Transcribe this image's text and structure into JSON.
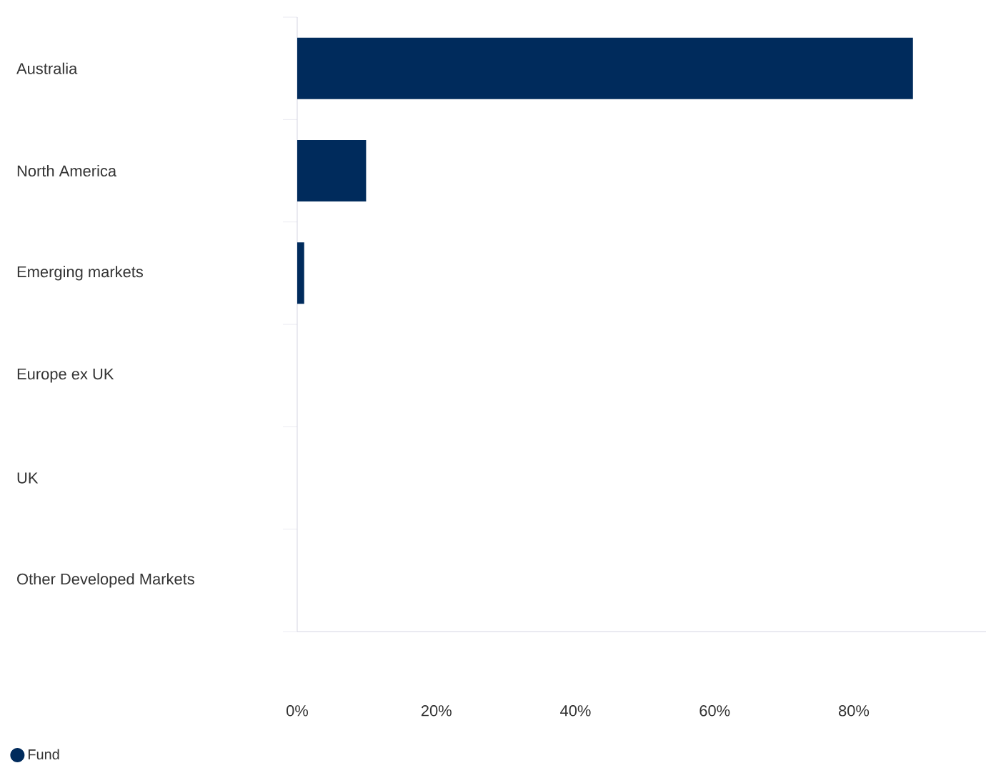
{
  "chart_data": {
    "type": "bar",
    "orientation": "horizontal",
    "categories": [
      "Australia",
      "North America",
      "Emerging markets",
      "Europe ex UK",
      "UK",
      "Other Developed Markets"
    ],
    "series": [
      {
        "name": "Fund",
        "color": "#002b5c",
        "values": [
          88.5,
          9.9,
          1.0,
          0,
          0,
          0
        ]
      }
    ],
    "xticks": [
      {
        "value": 0,
        "label": "0%"
      },
      {
        "value": 20,
        "label": "20%"
      },
      {
        "value": 40,
        "label": "40%"
      },
      {
        "value": 60,
        "label": "60%"
      },
      {
        "value": 80,
        "label": "80%"
      }
    ],
    "xlim": [
      0,
      99
    ],
    "grid": false,
    "legend": "bottom left"
  }
}
